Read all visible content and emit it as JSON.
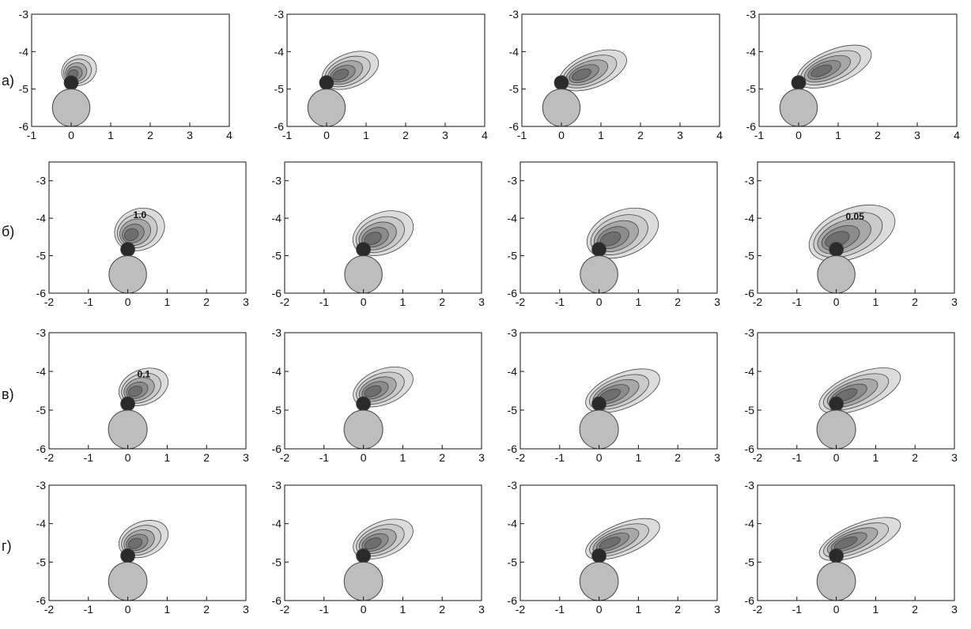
{
  "row_labels": [
    "а)",
    "б)",
    "в)",
    "г)"
  ],
  "colors": {
    "frame": "#111111",
    "contour_line": "#444444",
    "fill_light": "#dcdcdc",
    "fill_mid": "#a8a8a8",
    "fill_dark": "#6e6e6e",
    "fill_core": "#2a2a2a",
    "sphere": "#bdbdbd",
    "sphere_edge": "#444444"
  },
  "chart_data": [
    {
      "type": "heatmap",
      "panel": "a1",
      "row": 0,
      "col": 0,
      "xlim": [
        -1,
        4
      ],
      "ylim": [
        -6,
        -3
      ],
      "xticks": [
        "-1",
        "0",
        "1",
        "2",
        "3",
        "4"
      ],
      "yticks": [
        "-3",
        "-4",
        "-5",
        "-6"
      ],
      "sphere": {
        "x": 0,
        "y": -5.5
      },
      "plume": {
        "x": 0.2,
        "y": -4.5,
        "w": 0.9,
        "h": 0.8
      },
      "annotation": ""
    },
    {
      "type": "heatmap",
      "panel": "a2",
      "row": 0,
      "col": 1,
      "xlim": [
        -1,
        4
      ],
      "ylim": [
        -6,
        -3
      ],
      "xticks": [
        "-1",
        "0",
        "1",
        "2",
        "3",
        "4"
      ],
      "yticks": [
        "-3",
        "-4",
        "-5",
        "-6"
      ],
      "sphere": {
        "x": 0,
        "y": -5.5
      },
      "plume": {
        "x": 0.6,
        "y": -4.5,
        "w": 1.5,
        "h": 0.9
      },
      "annotation": ""
    },
    {
      "type": "heatmap",
      "panel": "a3",
      "row": 0,
      "col": 2,
      "xlim": [
        -1,
        4
      ],
      "ylim": [
        -6,
        -3
      ],
      "xticks": [
        "-1",
        "0",
        "1",
        "2",
        "3",
        "4"
      ],
      "yticks": [
        "-3",
        "-4",
        "-5",
        "-6"
      ],
      "sphere": {
        "x": 0,
        "y": -5.5
      },
      "plume": {
        "x": 0.8,
        "y": -4.5,
        "w": 1.8,
        "h": 0.9
      },
      "annotation": ""
    },
    {
      "type": "heatmap",
      "panel": "a4",
      "row": 0,
      "col": 3,
      "xlim": [
        -1,
        4
      ],
      "ylim": [
        -6,
        -3
      ],
      "xticks": [
        "-1",
        "0",
        "1",
        "2",
        "3",
        "4"
      ],
      "yticks": [
        "-3",
        "-4",
        "-5",
        "-6"
      ],
      "sphere": {
        "x": 0,
        "y": -5.5
      },
      "plume": {
        "x": 0.9,
        "y": -4.4,
        "w": 2.0,
        "h": 0.9
      },
      "annotation": ""
    },
    {
      "type": "heatmap",
      "panel": "b1",
      "row": 1,
      "col": 0,
      "xlim": [
        -2,
        3
      ],
      "ylim": [
        -6,
        -2.5
      ],
      "xticks": [
        "-2",
        "-1",
        "0",
        "1",
        "2",
        "3"
      ],
      "yticks": [
        "-3",
        "-4",
        "-5",
        "-6"
      ],
      "sphere": {
        "x": 0,
        "y": -5.5
      },
      "plume": {
        "x": 0.3,
        "y": -4.3,
        "w": 1.3,
        "h": 1.1
      },
      "annotation": "1.0"
    },
    {
      "type": "heatmap",
      "panel": "b2",
      "row": 1,
      "col": 1,
      "xlim": [
        -2,
        3
      ],
      "ylim": [
        -6,
        -2.5
      ],
      "xticks": [
        "-2",
        "-1",
        "0",
        "1",
        "2",
        "3"
      ],
      "yticks": [
        "-3",
        "-4",
        "-5",
        "-6"
      ],
      "sphere": {
        "x": 0,
        "y": -5.5
      },
      "plume": {
        "x": 0.5,
        "y": -4.4,
        "w": 1.6,
        "h": 1.1
      },
      "annotation": ""
    },
    {
      "type": "heatmap",
      "panel": "b3",
      "row": 1,
      "col": 2,
      "xlim": [
        -2,
        3
      ],
      "ylim": [
        -6,
        -2.5
      ],
      "xticks": [
        "-2",
        "-1",
        "0",
        "1",
        "2",
        "3"
      ],
      "yticks": [
        "-3",
        "-4",
        "-5",
        "-6"
      ],
      "sphere": {
        "x": 0,
        "y": -5.5
      },
      "plume": {
        "x": 0.6,
        "y": -4.4,
        "w": 1.9,
        "h": 1.2
      },
      "annotation": ""
    },
    {
      "type": "heatmap",
      "panel": "b4",
      "row": 1,
      "col": 3,
      "xlim": [
        -2,
        3
      ],
      "ylim": [
        -6,
        -2.5
      ],
      "xticks": [
        "-2",
        "-1",
        "0",
        "1",
        "2",
        "3"
      ],
      "yticks": [
        "-3",
        "-4",
        "-5",
        "-6"
      ],
      "sphere": {
        "x": 0,
        "y": -5.5
      },
      "plume": {
        "x": 0.4,
        "y": -4.4,
        "w": 2.3,
        "h": 1.3
      },
      "annotation": "0.05"
    },
    {
      "type": "heatmap",
      "panel": "c1",
      "row": 2,
      "col": 0,
      "xlim": [
        -2,
        3
      ],
      "ylim": [
        -6,
        -3
      ],
      "xticks": [
        "-2",
        "-1",
        "0",
        "1",
        "2",
        "3"
      ],
      "yticks": [
        "-3",
        "-4",
        "-5",
        "-6"
      ],
      "sphere": {
        "x": 0,
        "y": -5.5
      },
      "plume": {
        "x": 0.4,
        "y": -4.4,
        "w": 1.3,
        "h": 0.9
      },
      "annotation": "0.1"
    },
    {
      "type": "heatmap",
      "panel": "c2",
      "row": 2,
      "col": 1,
      "xlim": [
        -2,
        3
      ],
      "ylim": [
        -6,
        -3
      ],
      "xticks": [
        "-2",
        "-1",
        "0",
        "1",
        "2",
        "3"
      ],
      "yticks": [
        "-3",
        "-4",
        "-5",
        "-6"
      ],
      "sphere": {
        "x": 0,
        "y": -5.5
      },
      "plume": {
        "x": 0.5,
        "y": -4.4,
        "w": 1.6,
        "h": 0.9
      },
      "annotation": ""
    },
    {
      "type": "heatmap",
      "panel": "c3",
      "row": 2,
      "col": 2,
      "xlim": [
        -2,
        3
      ],
      "ylim": [
        -6,
        -3
      ],
      "xticks": [
        "-2",
        "-1",
        "0",
        "1",
        "2",
        "3"
      ],
      "yticks": [
        "-3",
        "-4",
        "-5",
        "-6"
      ],
      "sphere": {
        "x": 0,
        "y": -5.5
      },
      "plume": {
        "x": 0.6,
        "y": -4.5,
        "w": 2.0,
        "h": 0.9
      },
      "annotation": ""
    },
    {
      "type": "heatmap",
      "panel": "c4",
      "row": 2,
      "col": 3,
      "xlim": [
        -2,
        3
      ],
      "ylim": [
        -6,
        -3
      ],
      "xticks": [
        "-2",
        "-1",
        "0",
        "1",
        "2",
        "3"
      ],
      "yticks": [
        "-3",
        "-4",
        "-5",
        "-6"
      ],
      "sphere": {
        "x": 0,
        "y": -5.5
      },
      "plume": {
        "x": 0.6,
        "y": -4.5,
        "w": 2.2,
        "h": 0.9
      },
      "annotation": ""
    },
    {
      "type": "heatmap",
      "panel": "d1",
      "row": 3,
      "col": 0,
      "xlim": [
        -2,
        3
      ],
      "ylim": [
        -6,
        -3
      ],
      "xticks": [
        "-2",
        "-1",
        "0",
        "1",
        "2",
        "3"
      ],
      "yticks": [
        "-3",
        "-4",
        "-5",
        "-6"
      ],
      "sphere": {
        "x": 0,
        "y": -5.5
      },
      "plume": {
        "x": 0.4,
        "y": -4.4,
        "w": 1.3,
        "h": 0.9
      },
      "annotation": ""
    },
    {
      "type": "heatmap",
      "panel": "d2",
      "row": 3,
      "col": 1,
      "xlim": [
        -2,
        3
      ],
      "ylim": [
        -6,
        -3
      ],
      "xticks": [
        "-2",
        "-1",
        "0",
        "1",
        "2",
        "3"
      ],
      "yticks": [
        "-3",
        "-4",
        "-5",
        "-6"
      ],
      "sphere": {
        "x": 0,
        "y": -5.5
      },
      "plume": {
        "x": 0.5,
        "y": -4.4,
        "w": 1.6,
        "h": 0.9
      },
      "annotation": ""
    },
    {
      "type": "heatmap",
      "panel": "d3",
      "row": 3,
      "col": 2,
      "xlim": [
        -2,
        3
      ],
      "ylim": [
        -6,
        -3
      ],
      "xticks": [
        "-2",
        "-1",
        "0",
        "1",
        "2",
        "3"
      ],
      "yticks": [
        "-3",
        "-4",
        "-5",
        "-6"
      ],
      "sphere": {
        "x": 0,
        "y": -5.5
      },
      "plume": {
        "x": 0.6,
        "y": -4.4,
        "w": 2.0,
        "h": 0.8
      },
      "annotation": ""
    },
    {
      "type": "heatmap",
      "panel": "d4",
      "row": 3,
      "col": 3,
      "xlim": [
        -2,
        3
      ],
      "ylim": [
        -6,
        -3
      ],
      "xticks": [
        "-2",
        "-1",
        "0",
        "1",
        "2",
        "3"
      ],
      "yticks": [
        "-3",
        "-4",
        "-5",
        "-6"
      ],
      "sphere": {
        "x": 0,
        "y": -5.5
      },
      "plume": {
        "x": 0.6,
        "y": -4.4,
        "w": 2.2,
        "h": 0.8
      },
      "annotation": ""
    }
  ]
}
